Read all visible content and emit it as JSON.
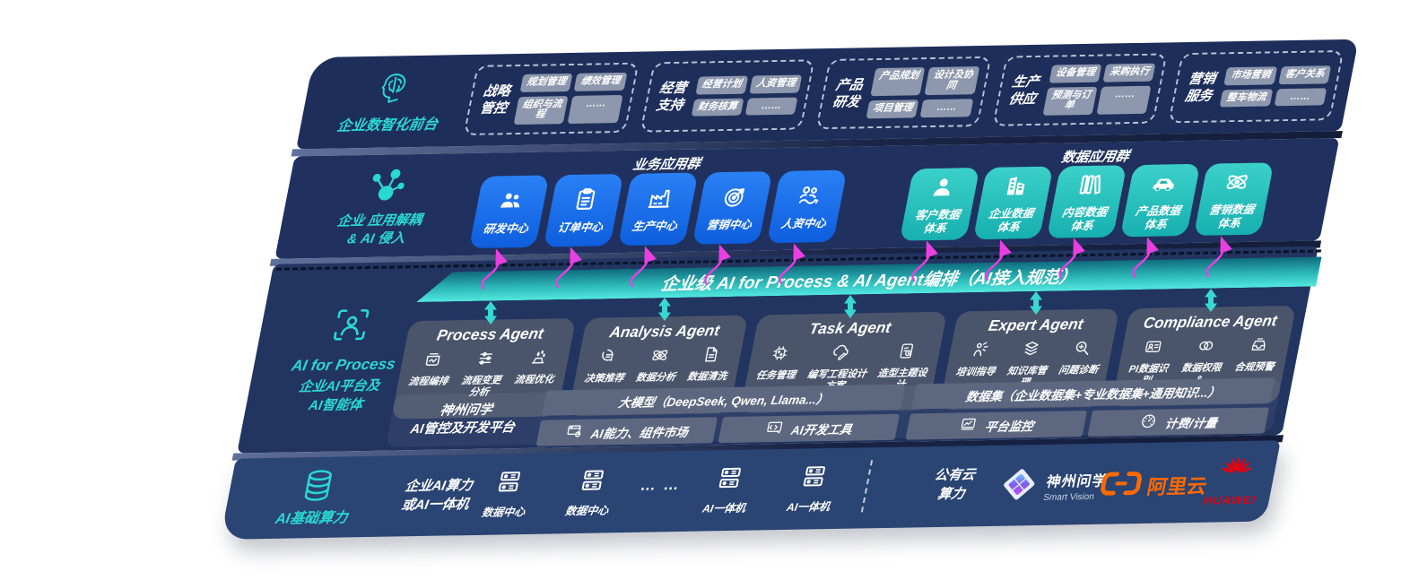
{
  "colors": {
    "accent_teal": "#2ad8d2",
    "blue_box": "#1670ef",
    "teal_box": "#2cc6c2",
    "magenta_arrow": "#ea3fe0",
    "banner_teal": "#2db8b8",
    "alibaba_orange": "#ff6a00",
    "huawei_red": "#e60012"
  },
  "front_layer": {
    "icon": "brain-icon",
    "label": "企业数智化前台",
    "groups": [
      {
        "name": "战略\n管控",
        "items": [
          "规划管理",
          "绩效管理",
          "组织与流程",
          "……"
        ]
      },
      {
        "name": "经营\n支持",
        "items": [
          "经营计划",
          "人资管理",
          "财务核算",
          "……"
        ]
      },
      {
        "name": "产品\n研发",
        "items": [
          "产品规划",
          "设计及协同",
          "项目管理",
          "……"
        ]
      },
      {
        "name": "生产\n供应",
        "items": [
          "设备管理",
          "采购执行",
          "预测与订单",
          "……"
        ]
      },
      {
        "name": "营销\n服务",
        "items": [
          "市场营销",
          "客户关系",
          "整车物流",
          "……"
        ]
      }
    ]
  },
  "app_layer": {
    "icon": "molecule-icon",
    "label": "企业 应用解耦\n& AI 侵入",
    "business_group": {
      "title": "业务应用群",
      "apps": [
        {
          "label": "研发中心",
          "icon": "team-icon"
        },
        {
          "label": "订单中心",
          "icon": "clipboard-icon"
        },
        {
          "label": "生产中心",
          "icon": "factory-icon"
        },
        {
          "label": "营销中心",
          "icon": "target-icon"
        },
        {
          "label": "人资中心",
          "icon": "hr-icon"
        }
      ]
    },
    "data_group": {
      "title": "数据应用群",
      "apps": [
        {
          "label": "客户数据\n体系",
          "icon": "person-icon"
        },
        {
          "label": "企业数据\n体系",
          "icon": "building-icon"
        },
        {
          "label": "内容数据\n体系",
          "icon": "books-icon"
        },
        {
          "label": "产品数据\n体系",
          "icon": "car-icon"
        },
        {
          "label": "营销数据\n体系",
          "icon": "atom-icon"
        }
      ]
    }
  },
  "ai_layer": {
    "icon": "person-scan-icon",
    "label_en": "AI for Process",
    "label_zh": "企业AI平台及\nAI智能体",
    "banner": "企业级 AI for Process & AI Agent编排（AI接入规范）",
    "agents": [
      {
        "title": "Process Agent",
        "items": [
          {
            "label": "流程编排",
            "icon": "flow-icon"
          },
          {
            "label": "流程变更分析",
            "icon": "sliders-icon"
          },
          {
            "label": "流程优化",
            "icon": "optimize-icon"
          }
        ]
      },
      {
        "title": "Analysis Agent",
        "items": [
          {
            "label": "决策推荐",
            "icon": "decision-icon"
          },
          {
            "label": "数据分析",
            "icon": "atom-icon"
          },
          {
            "label": "数据清洗",
            "icon": "clean-icon"
          }
        ]
      },
      {
        "title": "Task Agent",
        "items": [
          {
            "label": "任务管理",
            "icon": "chip-icon"
          },
          {
            "label": "编写工程设计方案",
            "icon": "cloud-edit-icon"
          },
          {
            "label": "造型主题设计",
            "icon": "design-icon"
          }
        ]
      },
      {
        "title": "Expert Agent",
        "items": [
          {
            "label": "培训指导",
            "icon": "training-icon"
          },
          {
            "label": "知识库管理",
            "icon": "layers-icon"
          },
          {
            "label": "问题诊断",
            "icon": "diagnose-icon"
          }
        ]
      },
      {
        "title": "Compliance Agent",
        "items": [
          {
            "label": "PI数据识别",
            "icon": "idcard-icon"
          },
          {
            "label": "数据权限&\n安全",
            "icon": "link-icon"
          },
          {
            "label": "合规预警",
            "icon": "tray-icon"
          }
        ]
      }
    ],
    "platform": {
      "label": "神州问学\nAI管控及开发平台",
      "model_bar": "大模型（DeepSeek, Qwen, Llama...）",
      "cells": [
        {
          "label": "AI能力、组件市场",
          "icon": "market-icon"
        },
        {
          "label": "AI开发工具",
          "icon": "devtools-icon"
        }
      ],
      "dataset_bar": "数据集（企业数据集+专业数据集+通用知识...）",
      "cells2": [
        {
          "label": "平台监控",
          "icon": "monitor-icon"
        },
        {
          "label": "计费/计量",
          "icon": "gauge-icon"
        }
      ]
    }
  },
  "compute_layer": {
    "icon": "database-icon",
    "label": "AI基础算力",
    "compute_text": "企业AI算力\n或AI一体机",
    "nodes": [
      {
        "label": "数据中心",
        "icon": "server-icon"
      },
      {
        "label": "数据中心",
        "icon": "server-icon"
      },
      {
        "label": "… …",
        "icon": ""
      },
      {
        "label": "AI一体机",
        "icon": "server-icon"
      },
      {
        "label": "AI一体机",
        "icon": "server-icon"
      }
    ],
    "public_cloud": "公有云\n算力",
    "logos": {
      "smart_vision": {
        "icon": "sv-logo-icon",
        "name": "神州问学",
        "sub": "Smart Vision"
      },
      "alibaba": {
        "icon": "alibaba-icon",
        "name": "阿里云"
      },
      "huawei": {
        "icon": "huawei-icon",
        "name": "HUAWEI"
      }
    }
  }
}
